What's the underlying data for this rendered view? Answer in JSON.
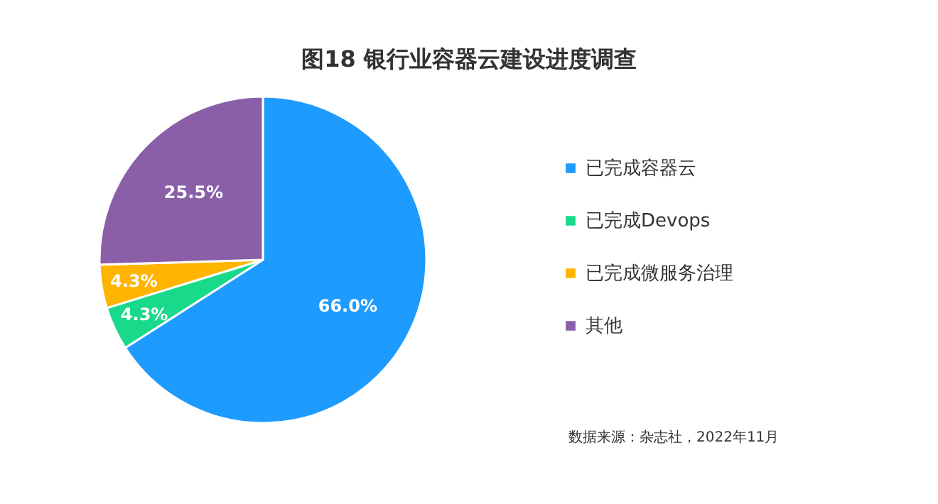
{
  "chart_data": {
    "type": "pie",
    "title": "图18 银行业容器云建设进度调查",
    "categories": [
      "已完成容器云",
      "已完成Devops",
      "已完成微服务治理",
      "其他"
    ],
    "values": [
      66.0,
      4.3,
      4.3,
      25.5
    ],
    "value_labels": [
      "66.0%",
      "4.3%",
      "4.3%",
      "25.5%"
    ],
    "colors": [
      "#1e9bff",
      "#19d98a",
      "#ffb400",
      "#8a5fa8"
    ],
    "legend": "right",
    "annotations": [
      "数据来源：杂志社，2022年11月"
    ]
  }
}
